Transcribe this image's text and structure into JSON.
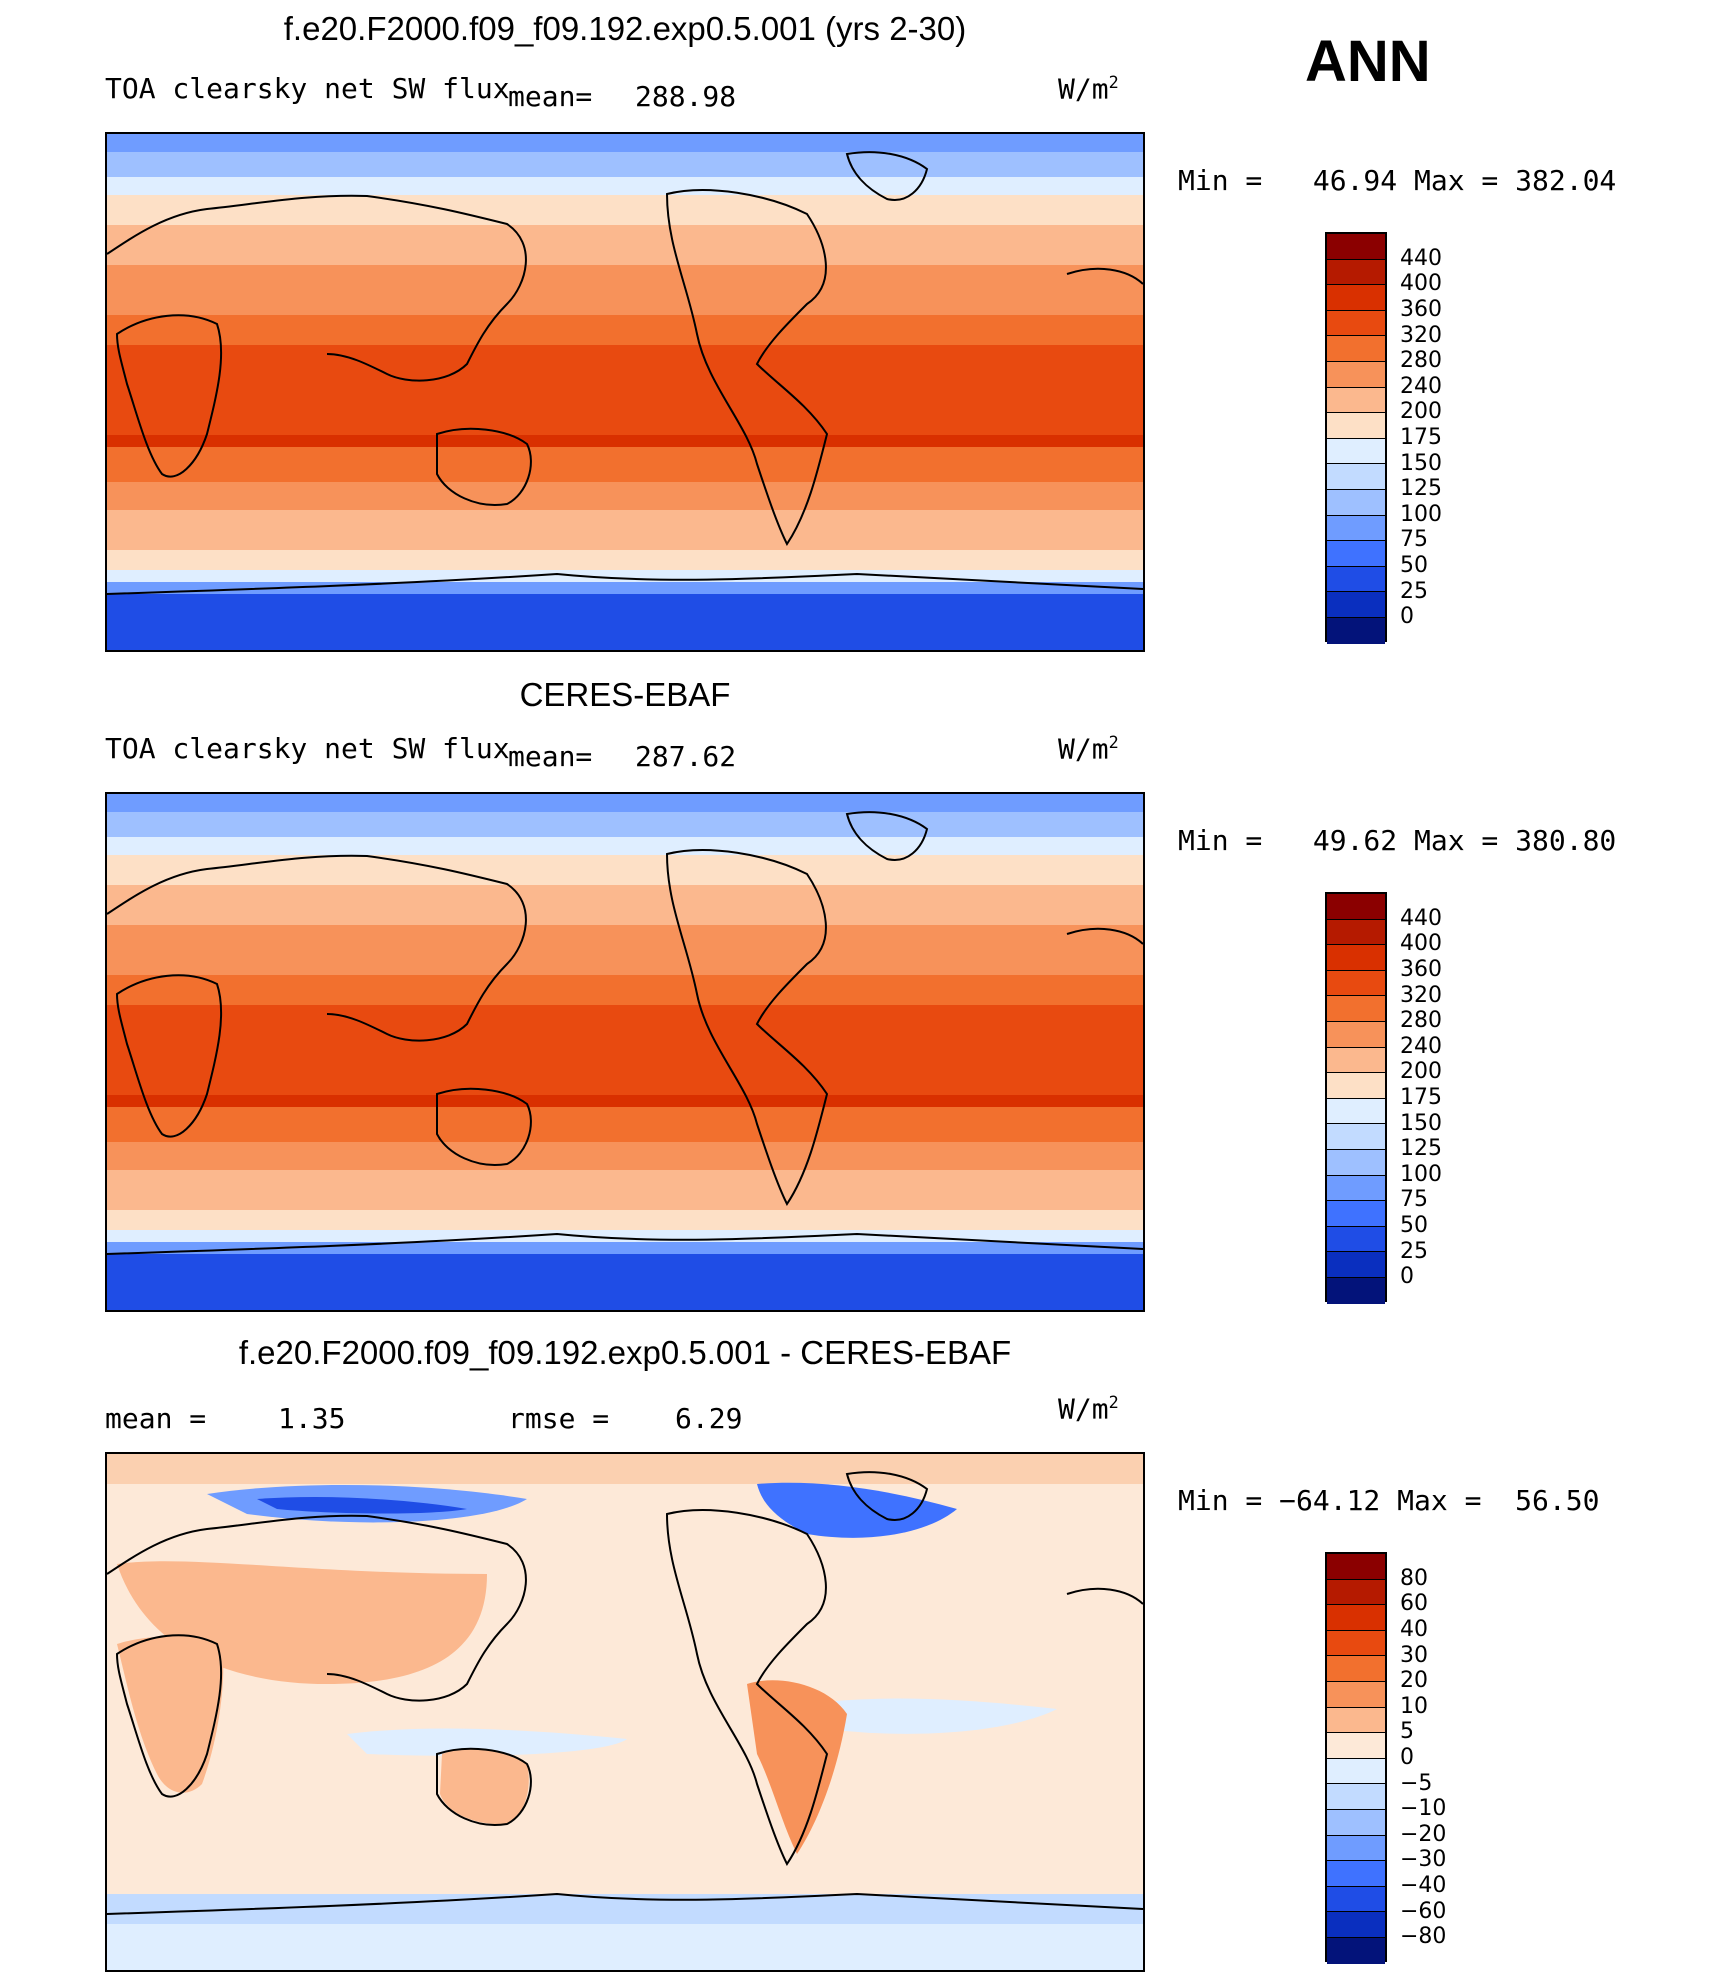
{
  "season": "ANN",
  "units_base": "W/m",
  "units_exp": "2",
  "panels": [
    {
      "title": "f.e20.F2000.f09_f09.192.exp0.5.001 (yrs 2-30)",
      "variable": "TOA clearsky net SW flux",
      "mean_label": "mean=",
      "mean_value": "288.98",
      "minmax": "Min =   46.94 Max = 382.04",
      "colorbar_labels": [
        "440",
        "400",
        "360",
        "320",
        "280",
        "240",
        "200",
        "175",
        "150",
        "125",
        "100",
        "75",
        "50",
        "25",
        "0"
      ]
    },
    {
      "title": "CERES-EBAF",
      "variable": "TOA clearsky net SW flux",
      "mean_label": "mean=",
      "mean_value": "287.62",
      "minmax": "Min =   49.62 Max = 380.80",
      "colorbar_labels": [
        "440",
        "400",
        "360",
        "320",
        "280",
        "240",
        "200",
        "175",
        "150",
        "125",
        "100",
        "75",
        "50",
        "25",
        "0"
      ]
    },
    {
      "title": "f.e20.F2000.f09_f09.192.exp0.5.001 - CERES-EBAF",
      "mean_label": "mean =",
      "mean_value": "1.35",
      "rmse_label": "rmse =",
      "rmse_value": "6.29",
      "minmax": "Min = −64.12 Max =  56.50",
      "colorbar_labels": [
        "80",
        "60",
        "40",
        "30",
        "20",
        "10",
        "5",
        "0",
        "−5",
        "−10",
        "−20",
        "−30",
        "−40",
        "−60",
        "−80"
      ]
    }
  ],
  "colors": {
    "abs_scale": [
      "#8b0000",
      "#b51a00",
      "#d93000",
      "#e84a10",
      "#f2702e",
      "#f7925a",
      "#fbb88e",
      "#fde0c6",
      "#dfeeff",
      "#c2dbff",
      "#9ec0ff",
      "#6f9cff",
      "#3f72ff",
      "#1f4de6",
      "#0a2fbf",
      "#03137a"
    ],
    "diff_scale": [
      "#8b0000",
      "#b51a00",
      "#d93000",
      "#e84a10",
      "#f2702e",
      "#f7925a",
      "#fbb88e",
      "#fde9d8",
      "#dfeeff",
      "#c2dbff",
      "#9ec0ff",
      "#6f9cff",
      "#3f72ff",
      "#1f4de6",
      "#0a2fbf",
      "#03137a"
    ]
  }
}
